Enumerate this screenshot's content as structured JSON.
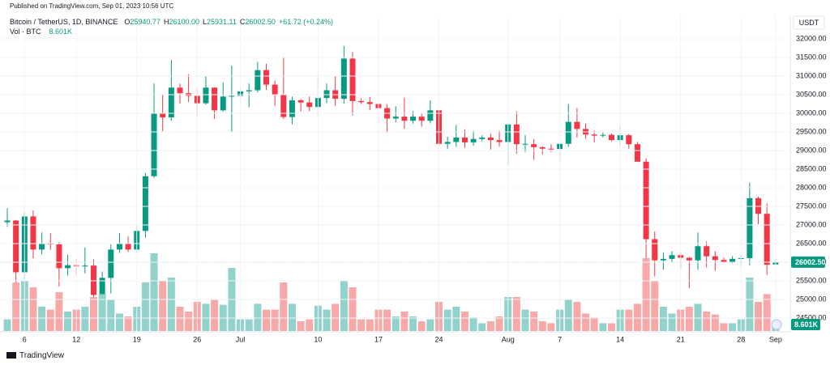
{
  "header": {
    "published": "Published on TradingView.com, Sep 01, 2023 10:56 UTC",
    "symbol": "Bitcoin / TetherUS, 1D, BINANCE",
    "ohlc": [
      {
        "key": "O",
        "value": "25940.77"
      },
      {
        "key": "H",
        "value": "26100.00"
      },
      {
        "key": "L",
        "value": "25931.11"
      },
      {
        "key": "C",
        "value": "26002.50"
      }
    ],
    "change": "+61.72 (+0.24%)",
    "volume_title": "Vol · BTC",
    "currency": "USDT"
  },
  "footer": "TradingView",
  "chart_data": {
    "type": "candlestick",
    "up_color": "#089981",
    "down_color": "#f23645",
    "volume_up_color": "#92d2cc",
    "volume_down_color": "#f7a9a7",
    "grid": true,
    "categories": [
      null,
      null,
      "6",
      null,
      null,
      null,
      null,
      null,
      "12",
      null,
      null,
      null,
      null,
      null,
      null,
      "19",
      null,
      null,
      null,
      null,
      null,
      null,
      "26",
      null,
      null,
      null,
      null,
      "Jul",
      null,
      null,
      null,
      null,
      null,
      null,
      null,
      null,
      "10",
      null,
      null,
      null,
      null,
      null,
      null,
      "17",
      null,
      null,
      null,
      null,
      null,
      null,
      "24",
      null,
      null,
      null,
      null,
      null,
      null,
      null,
      "Aug",
      null,
      null,
      null,
      null,
      null,
      "7",
      null,
      null,
      null,
      null,
      null,
      null,
      "14",
      null,
      null,
      null,
      null,
      null,
      null,
      "21",
      null,
      null,
      null,
      null,
      null,
      null,
      "28",
      null,
      null,
      null,
      "Sep"
    ],
    "open": [
      27075,
      27120,
      25730,
      27230,
      26340,
      26500,
      26480,
      25840,
      25920,
      25900,
      25910,
      25120,
      25580,
      26340,
      26510,
      26340,
      26840,
      28310,
      29990,
      29890,
      30690,
      30540,
      30470,
      30270,
      30690,
      30080,
      30450,
      30470,
      30590,
      30620,
      31160,
      30770,
      30510,
      29900,
      30350,
      30290,
      30170,
      30410,
      30620,
      30390,
      31470,
      30330,
      30300,
      30250,
      30140,
      29860,
      29910,
      29800,
      29910,
      29800,
      30080,
      29180,
      29230,
      29350,
      29220,
      29310,
      29350,
      29280,
      29230,
      29700,
      29170,
      29170,
      29090,
      29050,
      29040,
      29180,
      29770,
      29580,
      29430,
      29400,
      29420,
      29280,
      29410,
      29170,
      28700,
      26620,
      26050,
      26090,
      26190,
      26120,
      26050,
      26430,
      26160,
      26060,
      26010,
      26090,
      26110,
      27720,
      27300,
      25940.77
    ],
    "high": [
      27450,
      27130,
      27350,
      27390,
      26800,
      26780,
      26540,
      26200,
      26090,
      26400,
      26080,
      25750,
      26480,
      26780,
      26690,
      27000,
      28400,
      30800,
      30500,
      31430,
      30800,
      31050,
      30660,
      31000,
      30700,
      30830,
      31280,
      30660,
      30800,
      31380,
      31330,
      30880,
      31500,
      30450,
      30380,
      30450,
      31050,
      30800,
      30990,
      31810,
      31640,
      30400,
      30440,
      30340,
      30240,
      30190,
      30420,
      30060,
      29990,
      30350,
      30100,
      29370,
      29690,
      29570,
      29530,
      29410,
      29450,
      29530,
      29740,
      30050,
      29410,
      29310,
      29120,
      29170,
      29250,
      30250,
      30140,
      29730,
      29540,
      29480,
      29460,
      29690,
      29450,
      29230,
      28790,
      26830,
      26260,
      26300,
      26260,
      26140,
      26800,
      26560,
      26300,
      26120,
      26160,
      26200,
      28140,
      27760,
      27580,
      26100
    ],
    "low": [
      26950,
      25400,
      25350,
      26100,
      26210,
      26330,
      25350,
      25640,
      25630,
      25700,
      24820,
      24750,
      25160,
      26250,
      26280,
      26260,
      26660,
      28270,
      29520,
      29800,
      30260,
      30300,
      29920,
      30230,
      29850,
      30050,
      29500,
      30320,
      30160,
      30560,
      30630,
      30200,
      29850,
      29700,
      30050,
      30060,
      29950,
      30270,
      30200,
      30260,
      29950,
      30250,
      30090,
      29660,
      29500,
      29760,
      29580,
      29720,
      29640,
      29730,
      28860,
      29050,
      29100,
      29070,
      29130,
      29250,
      29030,
      29110,
      28590,
      28920,
      28960,
      28750,
      28900,
      28960,
      28700,
      29100,
      29350,
      29320,
      29220,
      29350,
      29250,
      29100,
      29050,
      28700,
      25170,
      25620,
      25800,
      26000,
      25810,
      25300,
      25800,
      25860,
      25770,
      25990,
      25970,
      25880,
      25920,
      27020,
      25660,
      25931.11
    ],
    "close": [
      27120,
      25730,
      27230,
      26340,
      26500,
      26480,
      25840,
      25920,
      25900,
      25910,
      25120,
      25580,
      26340,
      26510,
      26340,
      26840,
      28310,
      29990,
      29890,
      30690,
      30540,
      30470,
      30270,
      30690,
      30080,
      30450,
      30470,
      30590,
      30620,
      31160,
      30770,
      30510,
      29900,
      30350,
      30290,
      30170,
      30410,
      30620,
      30390,
      31470,
      30330,
      30300,
      30250,
      30140,
      29860,
      29910,
      29800,
      29910,
      29800,
      30080,
      29180,
      29230,
      29350,
      29220,
      29310,
      29350,
      29280,
      29230,
      29700,
      29170,
      29180,
      29090,
      29050,
      29040,
      29180,
      29770,
      29580,
      29430,
      29400,
      29420,
      29280,
      29410,
      29170,
      28700,
      26620,
      26050,
      26090,
      26190,
      26120,
      26050,
      26430,
      26160,
      26060,
      26010,
      26090,
      26110,
      27720,
      27300,
      25930,
      26002.5
    ],
    "close_label": "26002.50",
    "volume": [
      12,
      50,
      52,
      45,
      25,
      22,
      40,
      20,
      22,
      25,
      35,
      38,
      32,
      18,
      15,
      25,
      50,
      80,
      52,
      55,
      25,
      20,
      30,
      28,
      32,
      27,
      65,
      12,
      12,
      28,
      22,
      22,
      50,
      28,
      10,
      12,
      26,
      22,
      28,
      52,
      45,
      12,
      12,
      22,
      22,
      15,
      20,
      15,
      10,
      12,
      30,
      22,
      25,
      20,
      14,
      8,
      10,
      15,
      35,
      35,
      22,
      20,
      10,
      8,
      22,
      32,
      30,
      18,
      14,
      8,
      8,
      22,
      22,
      28,
      75,
      52,
      25,
      18,
      22,
      25,
      28,
      20,
      17,
      8,
      8,
      12,
      55,
      30,
      38,
      8.601
    ],
    "volume_label": "8.601K",
    "ylim": [
      24250,
      32250
    ],
    "yticks": [
      {
        "value": 24500,
        "label": "24500.00"
      },
      {
        "value": 25000,
        "label": "25000.00"
      },
      {
        "value": 25500,
        "label": "25500.00"
      },
      {
        "value": 26000,
        "label": "26000.00"
      },
      {
        "value": 26500,
        "label": "26500.00"
      },
      {
        "value": 27000,
        "label": "27000.00"
      },
      {
        "value": 27500,
        "label": "27500.00"
      },
      {
        "value": 28000,
        "label": "28000.00"
      },
      {
        "value": 28500,
        "label": "28500.00"
      },
      {
        "value": 29000,
        "label": "29000.00"
      },
      {
        "value": 29500,
        "label": "29500.00"
      },
      {
        "value": 30000,
        "label": "30000.00"
      },
      {
        "value": 30500,
        "label": "30500.00"
      },
      {
        "value": 31000,
        "label": "31000.00"
      },
      {
        "value": 31500,
        "label": "31500.00"
      },
      {
        "value": 32000,
        "label": "32000.00"
      }
    ]
  }
}
